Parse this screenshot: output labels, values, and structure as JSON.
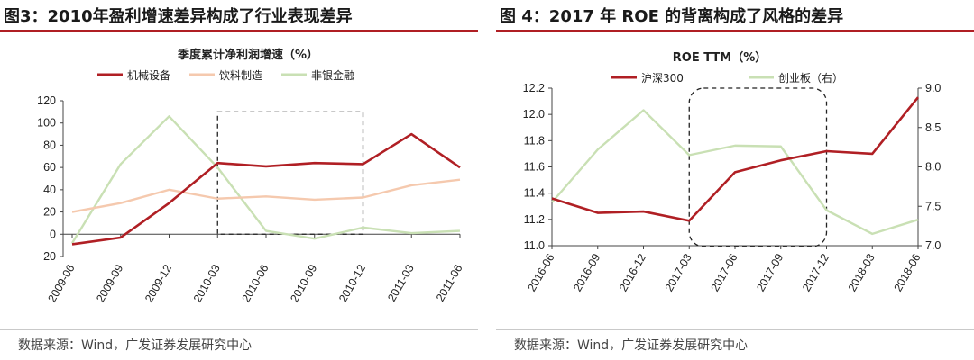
{
  "left": {
    "header_title": "图3：2010年盈利增速差异构成了行业表现差异",
    "source": "数据来源：Wind，广发证券发展研究中心",
    "chart_data": {
      "type": "line",
      "title": "季度累计净利润增速（%）",
      "categories": [
        "2009-06",
        "2009-09",
        "2009-12",
        "2010-03",
        "2010-06",
        "2010-09",
        "2010-12",
        "2011-03",
        "2011-06"
      ],
      "ylim": [
        -20,
        120
      ],
      "yticks": [
        "-20",
        "0",
        "20",
        "40",
        "60",
        "80",
        "100",
        "120"
      ],
      "series": [
        {
          "name": "机械设备",
          "color": "#b01f24",
          "values": [
            -9,
            -3,
            28,
            64,
            61,
            64,
            63,
            90,
            60
          ]
        },
        {
          "name": "饮料制造",
          "color": "#f5c9ae",
          "values": [
            20,
            28,
            40,
            32,
            34,
            31,
            33,
            44,
            49
          ]
        },
        {
          "name": "非银金融",
          "color": "#c9e0b4",
          "values": [
            -8,
            63,
            106,
            60,
            3,
            -4,
            6,
            1,
            3
          ]
        }
      ],
      "legend_placement": "top",
      "grid": false,
      "highlight": {
        "shape": "dashed-rectangle",
        "x_from": "2010-03",
        "x_to": "2010-12",
        "y_from": 0,
        "y_to": 110
      }
    }
  },
  "right": {
    "header_title": "图 4：2017 年 ROE 的背离构成了风格的差异",
    "source": "数据来源：Wind，广发证券发展研究中心",
    "chart_data": {
      "type": "line",
      "title": "ROE TTM（%）",
      "categories": [
        "2016-06",
        "2016-09",
        "2016-12",
        "2017-03",
        "2017-06",
        "2017-09",
        "2017-12",
        "2018-03",
        "2018-06"
      ],
      "ylim": [
        11.0,
        12.2
      ],
      "yticks": [
        "11.0",
        "11.2",
        "11.4",
        "11.6",
        "11.8",
        "12.0",
        "12.2"
      ],
      "y2lim": [
        7.0,
        9.0
      ],
      "y2ticks": [
        "7.0",
        "7.5",
        "8.0",
        "8.5",
        "9.0"
      ],
      "series": [
        {
          "name": "沪深300",
          "color": "#b01f24",
          "axis": "left",
          "values": [
            11.36,
            11.25,
            11.26,
            11.19,
            11.56,
            11.65,
            11.72,
            11.7,
            12.13
          ]
        },
        {
          "name": "创业板（右）",
          "color": "#c9e0b4",
          "axis": "right",
          "values": [
            7.55,
            8.22,
            8.72,
            8.15,
            8.27,
            8.26,
            7.45,
            7.15,
            7.33
          ]
        }
      ],
      "legend_placement": "top",
      "grid": false,
      "highlight": {
        "shape": "dashed-rounded-rectangle",
        "x_from": "2017-03",
        "x_to": "2017-12"
      }
    }
  }
}
